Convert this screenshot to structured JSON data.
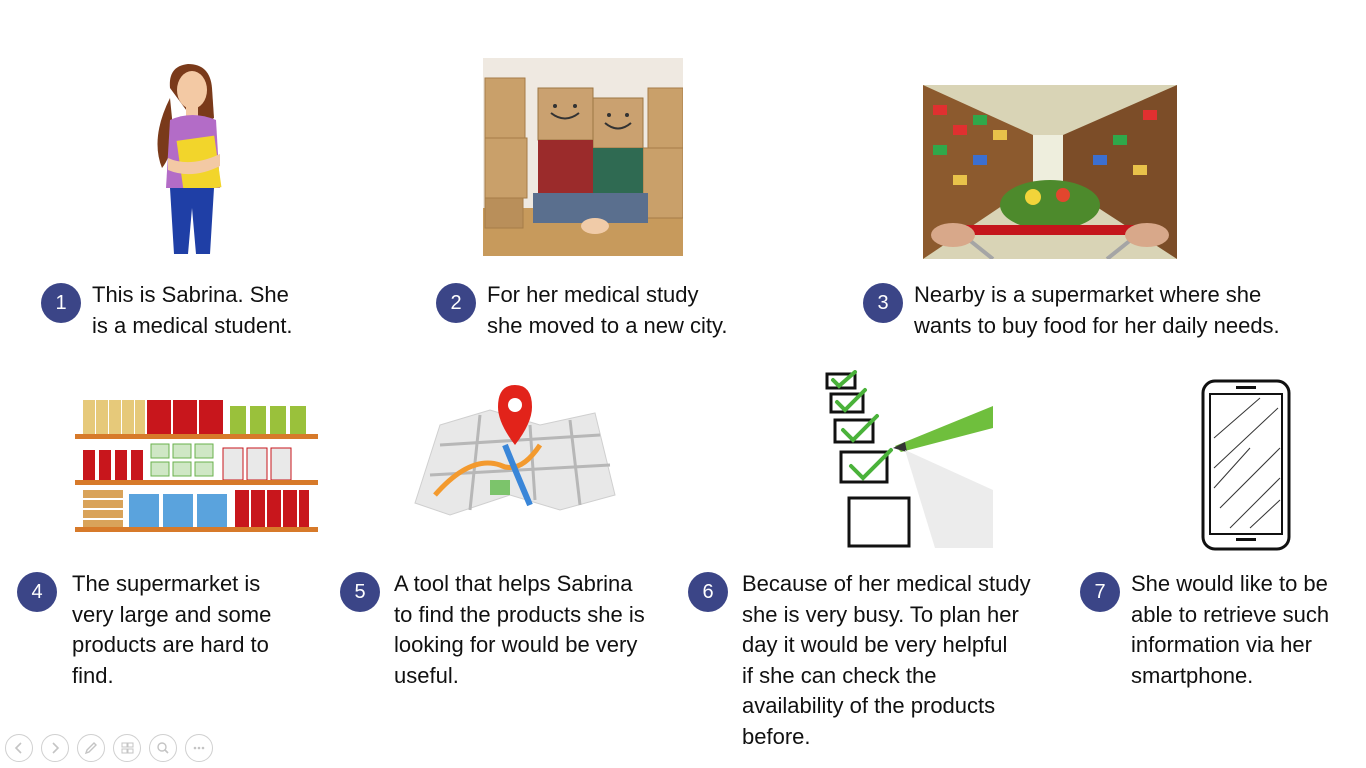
{
  "steps": [
    {
      "num": "1",
      "lines": [
        "This is Sabrina. She",
        "is a medical student."
      ],
      "illustration": "woman-student"
    },
    {
      "num": "2",
      "lines": [
        "For her medical study",
        "she moved to a new city."
      ],
      "illustration": "moving-boxes"
    },
    {
      "num": "3",
      "lines": [
        "Nearby is a supermarket where she",
        "wants to buy food for her daily needs."
      ],
      "illustration": "supermarket-aisle"
    },
    {
      "num": "4",
      "lines": [
        "The supermarket is",
        "very large and some",
        "products are hard to",
        "find."
      ],
      "illustration": "store-shelf"
    },
    {
      "num": "5",
      "lines": [
        "A tool that helps Sabrina",
        "to find the products she is",
        "looking for would be very",
        "useful."
      ],
      "illustration": "map-pin"
    },
    {
      "num": "6",
      "lines": [
        "Because of her medical study",
        "she is very busy. To plan her",
        "day it would be very helpful",
        "if she can check the",
        "availability of the products",
        "before."
      ],
      "illustration": "checklist"
    },
    {
      "num": "7",
      "lines": [
        "She would like to be",
        "able to retrieve such",
        "information via her",
        "smartphone."
      ],
      "illustration": "smartphone"
    }
  ],
  "colors": {
    "badge": "#3b4587",
    "text": "#111111"
  },
  "nav_controls": [
    "previous-icon",
    "next-icon",
    "pen-icon",
    "slides-icon",
    "zoom-icon",
    "more-icon"
  ]
}
